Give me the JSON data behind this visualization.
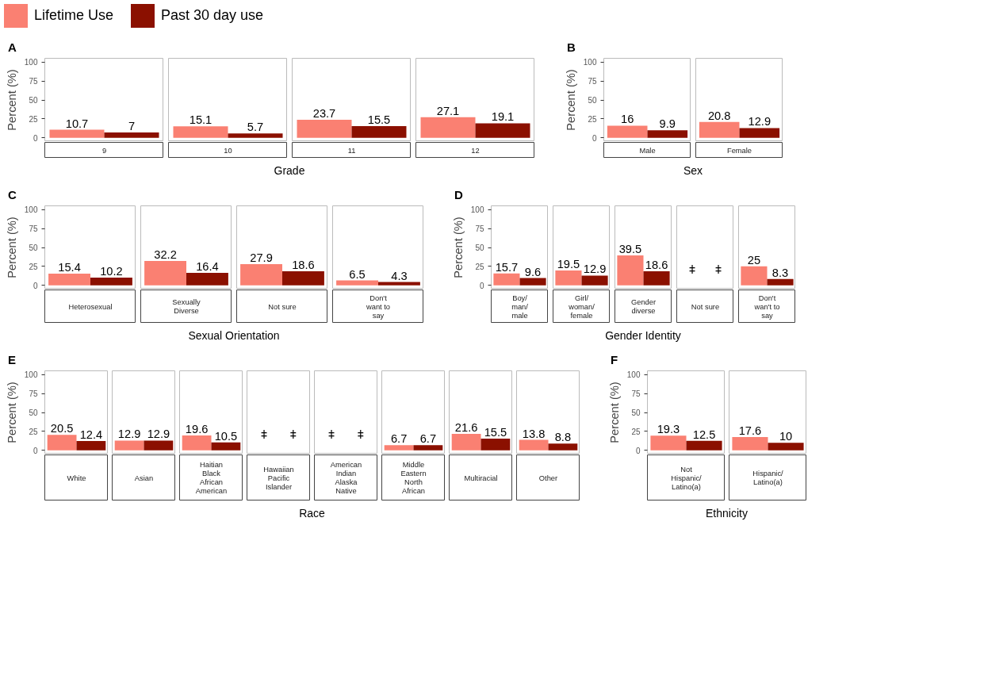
{
  "chart_data": [
    {
      "type": "bar",
      "title": "A",
      "xlabel": "Grade",
      "ylabel": "Percent (%)",
      "categories": [
        "9",
        "10",
        "11",
        "12"
      ],
      "ylim": [
        -5,
        105
      ],
      "yticks": [
        0,
        25,
        50,
        75,
        100
      ],
      "tick_labels": "y",
      "legend": "top",
      "data_labels": true,
      "series": [
        {
          "name": "Lifetime Use",
          "color": "#fa8072",
          "values": [
            10.7,
            15.1,
            23.7,
            27.1
          ]
        },
        {
          "name": "Past 30 day use",
          "color": "#8b1000",
          "values": [
            7,
            5.7,
            15.5,
            19.1
          ]
        }
      ]
    },
    {
      "type": "bar",
      "title": "B",
      "xlabel": "Sex",
      "ylabel": "Percent (%)",
      "categories": [
        "Male",
        "Female"
      ],
      "ylim": [
        -5,
        105
      ],
      "yticks": [
        0,
        25,
        50,
        75,
        100
      ],
      "tick_labels": "y",
      "data_labels": true,
      "series": [
        {
          "color": "#fa8072",
          "values": [
            16,
            20.8
          ]
        },
        {
          "color": "#8b1000",
          "values": [
            9.9,
            12.9
          ]
        }
      ]
    },
    {
      "type": "bar",
      "title": "C",
      "xlabel": "Sexual Orientation",
      "ylabel": "Percent (%)",
      "categories": [
        "Heterosexual",
        "Sexually\nDiverse",
        "Not sure",
        "Don't\nwant to\nsay"
      ],
      "ylim": [
        -5,
        105
      ],
      "yticks": [
        0,
        25,
        50,
        75,
        100
      ],
      "tick_labels": "y",
      "data_labels": true,
      "series": [
        {
          "color": "#fa8072",
          "values": [
            15.4,
            32.2,
            27.9,
            6.5
          ]
        },
        {
          "color": "#8b1000",
          "values": [
            10.2,
            16.4,
            18.6,
            4.3
          ]
        }
      ]
    },
    {
      "type": "bar",
      "title": "D",
      "xlabel": "Gender Identity",
      "ylabel": "Percent (%)",
      "categories": [
        "Boy/\nman/\nmale",
        "Girl/\nwoman/\nfemale",
        "Gender\ndiverse",
        "Not sure",
        "Don't\nwan't to\nsay"
      ],
      "ylim": [
        -5,
        105
      ],
      "yticks": [
        0,
        25,
        50,
        75,
        100
      ],
      "tick_labels": "y",
      "series": [
        {
          "color": "#fa8072",
          "values": [
            15.7,
            19.5,
            39.5,
            null,
            25
          ],
          "value_labels": [
            "15.7",
            "19.5",
            "39.5",
            "ǂ",
            "25"
          ]
        },
        {
          "color": "#8b1000",
          "values": [
            9.6,
            12.9,
            18.6,
            null,
            8.3
          ],
          "value_labels": [
            "9.6",
            "12.9",
            "18.6",
            "ǂ",
            "8.3"
          ]
        }
      ]
    },
    {
      "type": "bar",
      "title": "E",
      "xlabel": "Race",
      "ylabel": "Percent (%)",
      "categories": [
        "White",
        "Asian",
        "Haitian\nBlack\nAfrican\nAmerican",
        "Hawaiian\nPacific\nIslander",
        "American\nIndian\nAlaska\nNative",
        "Middle\nEastern\nNorth\nAfrican",
        "Multiracial",
        "Other"
      ],
      "ylim": [
        -5,
        105
      ],
      "yticks": [
        0,
        25,
        50,
        75,
        100
      ],
      "tick_labels": "y",
      "series": [
        {
          "color": "#fa8072",
          "values": [
            20.5,
            12.9,
            19.6,
            null,
            null,
            6.7,
            21.6,
            13.8
          ],
          "value_labels": [
            "20.5",
            "12.9",
            "19.6",
            "ǂ",
            "ǂ",
            "6.7",
            "21.6",
            "13.8"
          ]
        },
        {
          "color": "#8b1000",
          "values": [
            12.4,
            12.9,
            10.5,
            null,
            null,
            6.7,
            15.5,
            8.8
          ],
          "value_labels": [
            "12.4",
            "12.9",
            "10.5",
            "ǂ",
            "ǂ",
            "6.7",
            "15.5",
            "8.8"
          ]
        }
      ]
    },
    {
      "type": "bar",
      "title": "F",
      "xlabel": "Ethnicity",
      "ylabel": "Percent (%)",
      "categories": [
        "Not\nHispanic/\nLatino(a)",
        "Hispanic/\nLatino(a)"
      ],
      "ylim": [
        -5,
        105
      ],
      "yticks": [
        0,
        25,
        50,
        75,
        100
      ],
      "tick_labels": "y",
      "data_labels": true,
      "series": [
        {
          "color": "#fa8072",
          "values": [
            19.3,
            17.6
          ]
        },
        {
          "color": "#8b1000",
          "values": [
            12.5,
            10
          ]
        }
      ]
    }
  ]
}
